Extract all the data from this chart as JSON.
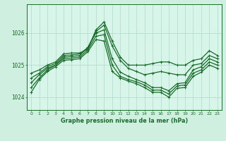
{
  "title": "Graphe pression niveau de la mer (hPa)",
  "background_color": "#cff0e0",
  "plot_bg_color": "#d8f5ea",
  "grid_color": "#b0d8c8",
  "line_color": "#1a6b2a",
  "x_ticks": [
    0,
    1,
    2,
    3,
    4,
    5,
    6,
    7,
    8,
    9,
    10,
    11,
    12,
    13,
    14,
    15,
    16,
    17,
    18,
    19,
    20,
    21,
    22,
    23
  ],
  "ylim": [
    1023.6,
    1026.9
  ],
  "yticks": [
    1024,
    1025,
    1026
  ],
  "series": [
    [
      1024.75,
      1024.85,
      1025.0,
      1025.1,
      1025.35,
      1025.38,
      1025.38,
      1025.5,
      1026.1,
      1026.35,
      1025.75,
      1025.25,
      1025.0,
      1025.0,
      1025.0,
      1025.05,
      1025.1,
      1025.1,
      1025.0,
      1025.0,
      1025.15,
      1025.2,
      1025.45,
      1025.3
    ],
    [
      1024.6,
      1024.75,
      1024.95,
      1025.05,
      1025.3,
      1025.32,
      1025.35,
      1025.55,
      1026.05,
      1026.25,
      1025.6,
      1025.15,
      1024.9,
      1024.8,
      1024.7,
      1024.75,
      1024.8,
      1024.75,
      1024.7,
      1024.7,
      1025.0,
      1025.05,
      1025.3,
      1025.2
    ],
    [
      1024.45,
      1024.7,
      1024.9,
      1025.0,
      1025.25,
      1025.27,
      1025.3,
      1025.55,
      1026.0,
      1026.1,
      1025.2,
      1024.78,
      1024.65,
      1024.55,
      1024.45,
      1024.3,
      1024.3,
      1024.2,
      1024.42,
      1024.45,
      1024.85,
      1024.95,
      1025.2,
      1025.1
    ],
    [
      1024.3,
      1024.6,
      1024.85,
      1025.0,
      1025.2,
      1025.22,
      1025.25,
      1025.48,
      1025.9,
      1025.95,
      1025.0,
      1024.65,
      1024.55,
      1024.48,
      1024.38,
      1024.22,
      1024.22,
      1024.1,
      1024.35,
      1024.38,
      1024.75,
      1024.85,
      1025.1,
      1025.0
    ],
    [
      1024.15,
      1024.55,
      1024.8,
      1024.95,
      1025.15,
      1025.17,
      1025.2,
      1025.42,
      1025.8,
      1025.75,
      1024.8,
      1024.6,
      1024.5,
      1024.42,
      1024.3,
      1024.15,
      1024.15,
      1024.0,
      1024.28,
      1024.3,
      1024.65,
      1024.78,
      1025.0,
      1024.9
    ]
  ]
}
